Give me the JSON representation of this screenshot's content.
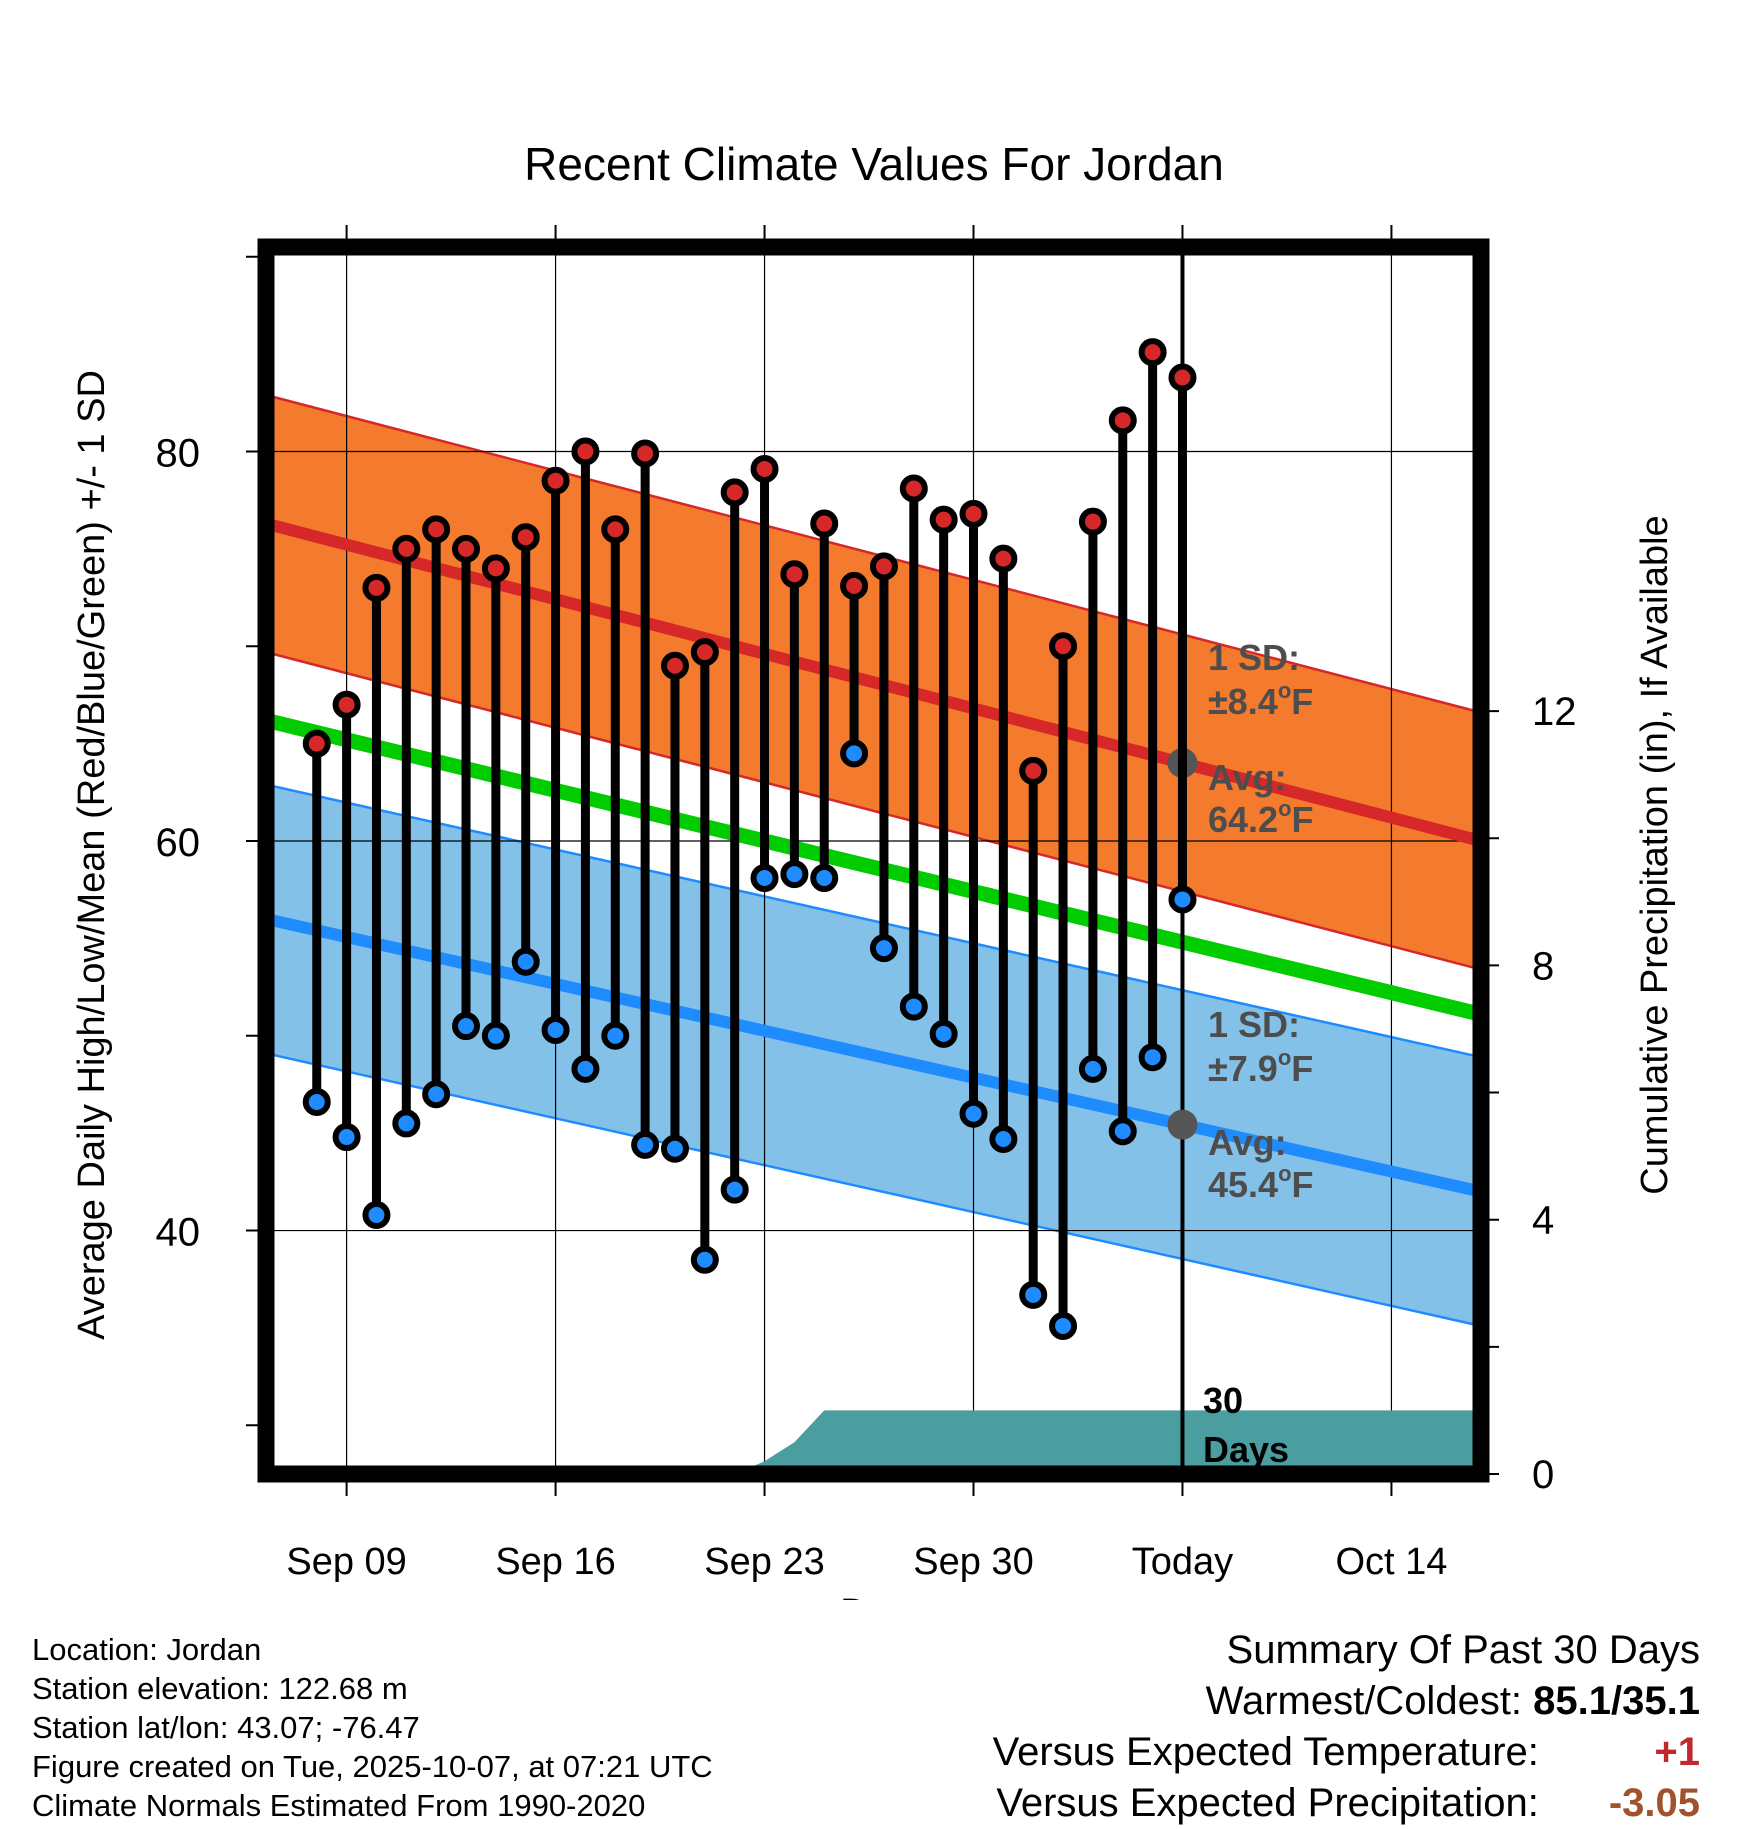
{
  "chart_data": {
    "type": "line",
    "title": "Recent Climate Values For Jordan",
    "xlabel": "Day",
    "ylabel": "Average Daily High/Low/Mean (Red/Blue/Green) +/- 1 SD",
    "y2label": "Cumulative Precipitation (in), If Available",
    "ylim": [
      27.5,
      90.5
    ],
    "y2lim": [
      0,
      19.3
    ],
    "yticks": [
      "40",
      "60",
      "80"
    ],
    "y2ticks": [
      "0",
      "4",
      "8",
      "12"
    ],
    "xlim": [
      6.3,
      47.0
    ],
    "x_tick_labels": [
      {
        "day": 9,
        "label": "Sep 09"
      },
      {
        "day": 16,
        "label": "Sep 16"
      },
      {
        "day": 23,
        "label": "Sep 23"
      },
      {
        "day": 30,
        "label": "Sep 30"
      },
      {
        "day": 37,
        "label": "Today"
      },
      {
        "day": 44,
        "label": "Oct 14"
      }
    ],
    "today_day": 37,
    "today_label": "30 Days",
    "normal_high": {
      "days": [
        6.3,
        47.0
      ],
      "values": [
        76.3,
        60.0
      ],
      "sd": 6.6
    },
    "normal_low": {
      "days": [
        6.3,
        47.0
      ],
      "values": [
        56.0,
        42.0
      ],
      "sd": 6.9
    },
    "normal_mean": {
      "days": [
        6.3,
        47.0
      ],
      "values": [
        66.2,
        51.1
      ]
    },
    "daily": {
      "days": [
        8,
        9,
        10,
        11,
        12,
        13,
        14,
        15,
        16,
        17,
        18,
        19,
        20,
        21,
        22,
        23,
        24,
        25,
        26,
        27,
        28,
        29,
        30,
        31,
        32,
        33,
        34,
        35,
        36,
        37
      ],
      "highs": [
        65.0,
        67.0,
        73.0,
        75.0,
        76.0,
        75.0,
        74.0,
        75.6,
        78.5,
        80.0,
        76.0,
        79.9,
        69.0,
        69.7,
        77.9,
        79.1,
        73.7,
        76.3,
        73.1,
        74.1,
        78.1,
        76.5,
        76.8,
        74.5,
        63.6,
        70.0,
        76.4,
        81.6,
        85.1,
        83.8
      ],
      "lows": [
        46.6,
        44.8,
        40.8,
        45.5,
        47.0,
        50.5,
        50.0,
        53.8,
        50.3,
        48.3,
        50.0,
        44.4,
        44.2,
        38.5,
        42.1,
        58.1,
        58.3,
        58.1,
        64.5,
        54.5,
        51.5,
        50.1,
        46.0,
        44.7,
        36.7,
        35.1,
        48.3,
        45.1,
        48.9,
        57.0
      ]
    },
    "avg_high_label": "Avg: 64.2°F",
    "avg_low_label": "Avg: 45.4°F",
    "sd_high_label": "1 SD: ±8.4°F",
    "sd_low_label": "1 SD: ±7.9°F",
    "precip": {
      "days": [
        6.3,
        20.8,
        22.0,
        23.0,
        24.0,
        25.0,
        47.0
      ],
      "values": [
        0.0,
        0.0,
        0.0,
        0.2,
        0.5,
        1.0,
        1.0
      ]
    }
  },
  "chart_text": {
    "title": "Recent Climate Values For Jordan",
    "xlabel": "Day",
    "ylabel": "Average Daily High/Low/Mean (Red/Blue/Green) +/- 1 SD",
    "y2label": "Cumulative Precipitation (in), If Available",
    "sd_high_1": "1 SD:",
    "sd_high_2": "±8.4",
    "sd_low_1": "1 SD:",
    "sd_low_2": "±7.9",
    "avg_high_1": "Avg:",
    "avg_high_2": "64.2",
    "avg_low_1": "Avg:",
    "avg_low_2": "45.4",
    "deg": "o",
    "unit": "F",
    "today_1": "30",
    "today_2": "Days"
  },
  "footer": {
    "location": "Location: Jordan",
    "elevation": "Station elevation: 122.68 m",
    "latlon": "Station lat/lon: 43.07; -76.47",
    "created": "Figure created on Tue, 2025-10-07, at 07:21 UTC",
    "normals": "Climate Normals Estimated From 1990-2020"
  },
  "summary": {
    "heading": "Summary Of Past 30 Days",
    "warm_label": "Warmest/Coldest:",
    "warm_value": "85.1/35.1",
    "temp_label": "Versus Expected Temperature:",
    "temp_value": "+1",
    "prcp_label": "Versus Expected Precipitation:",
    "prcp_value": "-3.05"
  },
  "colors": {
    "high_band": "#f47a2e",
    "high_line": "#d62828",
    "low_band": "#84c1e8",
    "low_line": "#1e8cff",
    "mean_line": "#00cc00",
    "precip": "#4a9ea0",
    "label": "#4d4d4d",
    "high_dot": "#d62828",
    "low_dot": "#1e8cff"
  }
}
